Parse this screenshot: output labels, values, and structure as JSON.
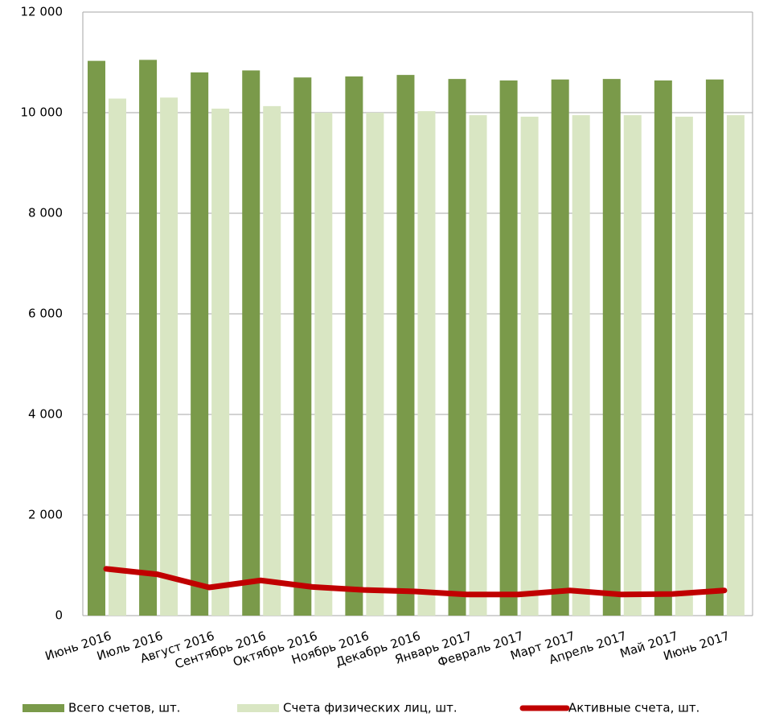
{
  "chart_data": {
    "type": "bar",
    "categories": [
      "Июнь 2016",
      "Июль 2016",
      "Август 2016",
      "Сентябрь 2016",
      "Октябрь 2016",
      "Ноябрь 2016",
      "Декабрь 2016",
      "Январь 2017",
      "Февраль 2017",
      "Март 2017",
      "Апрель 2017",
      "Май 2017",
      "Июнь 2017"
    ],
    "series": [
      {
        "name": "Всего счетов, шт.",
        "type": "bar",
        "color": "#7a9a4a",
        "values": [
          11030,
          11050,
          10800,
          10840,
          10700,
          10720,
          10750,
          10670,
          10640,
          10660,
          10670,
          10640,
          10660
        ]
      },
      {
        "name": "Счета физических лиц, шт.",
        "type": "bar",
        "color": "#d9e6c3",
        "values": [
          10280,
          10300,
          10080,
          10130,
          10000,
          10000,
          10030,
          9950,
          9920,
          9950,
          9950,
          9920,
          9950
        ]
      },
      {
        "name": "Активные счета, шт.",
        "type": "line",
        "color": "#c00000",
        "values": [
          930,
          820,
          560,
          700,
          570,
          510,
          480,
          420,
          420,
          500,
          420,
          430,
          500
        ]
      }
    ],
    "ylim": [
      0,
      12000
    ],
    "yticks": [
      0,
      {
        "value": 2000,
        "label": "2 000"
      },
      {
        "value": 4000,
        "label": "4 000"
      },
      {
        "value": 6000,
        "label": "6 000"
      },
      {
        "value": 8000,
        "label": "8 000"
      },
      {
        "value": 10000,
        "label": "10 000"
      },
      {
        "value": 12000,
        "label": "12 000"
      }
    ],
    "grid": true,
    "legend": "bottom"
  }
}
